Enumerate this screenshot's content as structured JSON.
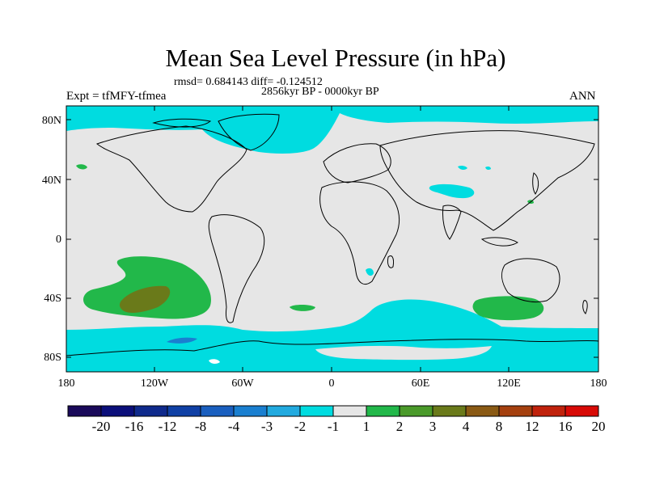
{
  "title": "Mean Sea Level Pressure (in hPa)",
  "stats": "rmsd= 0.684143  diff= -0.124512",
  "period": "2856kyr BP - 0000kyr BP",
  "experiment": "Expt = tfMFY-tfmea",
  "season": "ANN",
  "lat_labels": [
    "80N",
    "40N",
    "0",
    "40S",
    "80S"
  ],
  "lon_labels": [
    "180",
    "120W",
    "60W",
    "0",
    "60E",
    "120E",
    "180"
  ],
  "colorbar": {
    "labels": [
      "-20",
      "-16",
      "-12",
      "-8",
      "-4",
      "-3",
      "-2",
      "-1",
      "1",
      "2",
      "3",
      "4",
      "8",
      "12",
      "16",
      "20"
    ],
    "colors": [
      "#1a0a5a",
      "#0b0f7a",
      "#0f2a8c",
      "#1040a5",
      "#1a5fbf",
      "#1a7fd0",
      "#22aadf",
      "#00dce0",
      "#e6e6e6",
      "#22b84a",
      "#4a9a2a",
      "#6a7a1a",
      "#8a5a14",
      "#a5400f",
      "#c0220c",
      "#d80a06"
    ]
  },
  "colors": {
    "background_field": "#e6e6e6",
    "neg_1_2": "#00dce0",
    "neg_2_3": "#1a7fd0",
    "pos_1_2": "#22b84a",
    "pos_3_4": "#6a7a1a"
  }
}
